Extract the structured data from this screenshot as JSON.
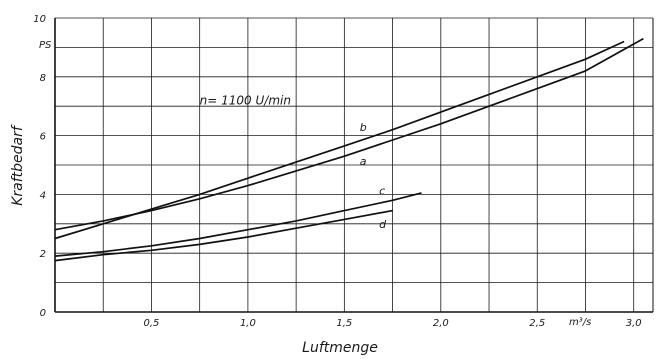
{
  "chart_data": {
    "type": "line",
    "title": "",
    "xlabel": "Luftmenge",
    "ylabel": "Kraftbedarf",
    "x_unit": "m³/s",
    "y_unit": "PS",
    "annotation": "n= 1100 U/min",
    "xlim": [
      0,
      3.1
    ],
    "ylim": [
      0,
      10
    ],
    "x_ticks": [
      0.5,
      1.0,
      1.5,
      2.0,
      2.5,
      3.0
    ],
    "x_tick_labels": [
      "0,5",
      "1,0",
      "1,5",
      "2,0",
      "2,5",
      "3,0"
    ],
    "y_ticks": [
      0,
      2,
      4,
      6,
      8,
      10
    ],
    "y_tick_labels": [
      "0",
      "2",
      "4",
      "6",
      "8",
      "10"
    ],
    "grid": true,
    "series": [
      {
        "name": "a",
        "x": [
          0,
          0.25,
          0.5,
          0.75,
          1.0,
          1.25,
          1.5,
          1.75,
          2.0,
          2.25,
          2.5,
          2.75,
          3.05
        ],
        "y": [
          2.8,
          3.1,
          3.45,
          3.85,
          4.3,
          4.8,
          5.3,
          5.85,
          6.4,
          7.0,
          7.6,
          8.2,
          9.3
        ]
      },
      {
        "name": "b",
        "x": [
          0,
          0.25,
          0.5,
          0.75,
          1.0,
          1.25,
          1.5,
          1.75,
          2.0,
          2.25,
          2.5,
          2.75,
          2.95
        ],
        "y": [
          2.5,
          3.0,
          3.5,
          4.0,
          4.55,
          5.1,
          5.65,
          6.2,
          6.8,
          7.4,
          8.0,
          8.6,
          9.2
        ]
      },
      {
        "name": "c",
        "x": [
          0,
          0.25,
          0.5,
          0.75,
          1.0,
          1.25,
          1.5,
          1.75,
          1.9
        ],
        "y": [
          1.9,
          2.05,
          2.25,
          2.5,
          2.8,
          3.1,
          3.45,
          3.8,
          4.05
        ]
      },
      {
        "name": "d",
        "x": [
          0,
          0.25,
          0.5,
          0.75,
          1.0,
          1.25,
          1.5,
          1.75
        ],
        "y": [
          1.75,
          1.95,
          2.1,
          2.3,
          2.55,
          2.85,
          3.15,
          3.45
        ]
      }
    ],
    "curve_label_positions": [
      {
        "name": "b",
        "x": 1.58,
        "y": 6.15
      },
      {
        "name": "a",
        "x": 1.58,
        "y": 5.0
      },
      {
        "name": "c",
        "x": 1.68,
        "y": 4.0
      },
      {
        "name": "d",
        "x": 1.68,
        "y": 2.85
      }
    ],
    "annotation_pos": {
      "x": 0.75,
      "y": 7.05
    }
  }
}
